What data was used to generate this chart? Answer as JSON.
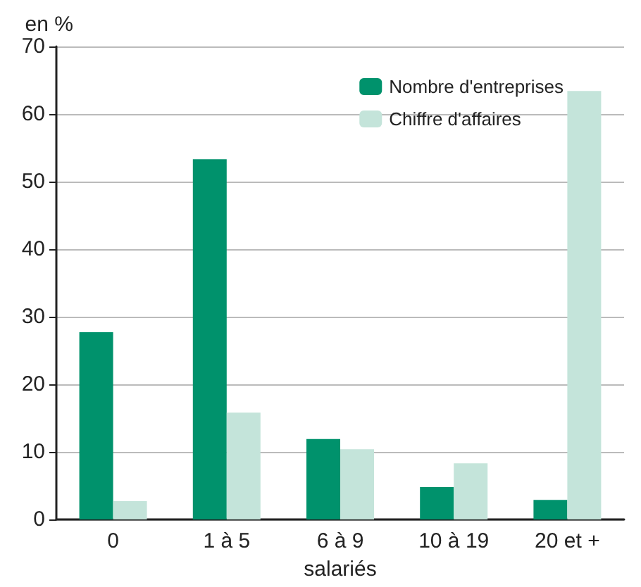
{
  "chart_data": {
    "type": "bar",
    "ylabel": "en %",
    "xlabel": "salariés",
    "categories": [
      "0",
      "1 à 5",
      "6 à 9",
      "10 à 19",
      "20 et +"
    ],
    "series": [
      {
        "name": "Nombre d'entreprises",
        "color": "#00926c",
        "values": [
          27.7,
          53.3,
          11.9,
          4.8,
          2.9
        ]
      },
      {
        "name": "Chiffre d'affaires",
        "color": "#c4e4da",
        "values": [
          2.7,
          15.8,
          10.4,
          8.3,
          63.4
        ]
      }
    ],
    "ylim": [
      0,
      70
    ],
    "yticks": [
      0,
      10,
      20,
      30,
      40,
      50,
      60,
      70
    ],
    "grid": "y",
    "legend": "top right"
  }
}
